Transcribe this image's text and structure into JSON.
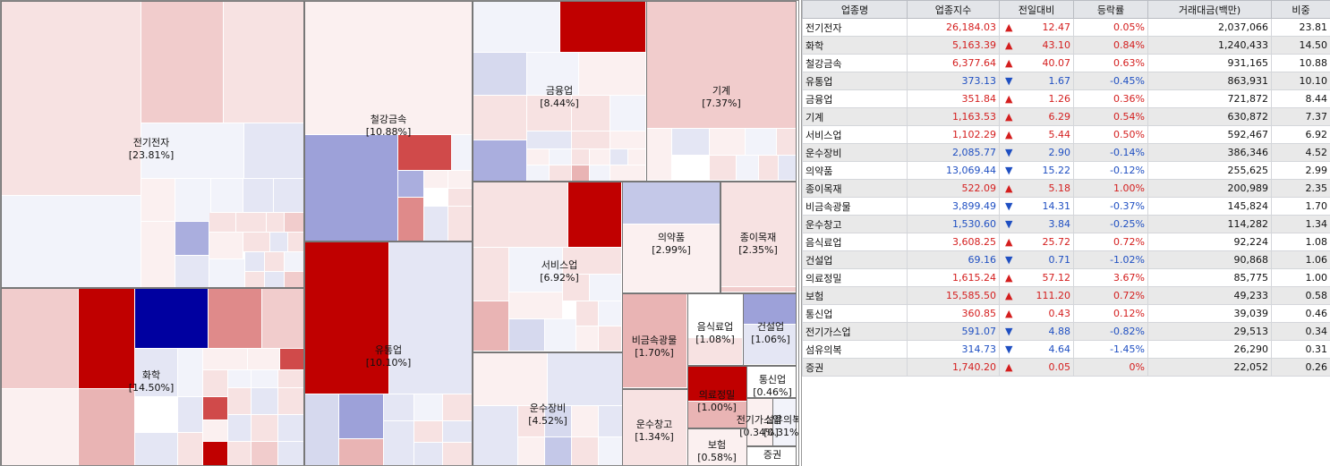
{
  "colors": {
    "up_strong": "#c00000",
    "down_strong": "#0000a0",
    "up_text": "#d41e1e",
    "down_text": "#1f4fc2",
    "header_bg": "#e3e5e9",
    "alt_row": "#e9e9e9"
  },
  "treemap": {
    "sectors": [
      {
        "name": "전기전자",
        "pct": "[23.81%]"
      },
      {
        "name": "화학",
        "pct": "[14.50%]"
      },
      {
        "name": "철강금속",
        "pct": "[10.88%]"
      },
      {
        "name": "유통업",
        "pct": "[10.10%]"
      },
      {
        "name": "금융업",
        "pct": "[8.44%]"
      },
      {
        "name": "기계",
        "pct": "[7.37%]"
      },
      {
        "name": "서비스업",
        "pct": "[6.92%]"
      },
      {
        "name": "운수장비",
        "pct": "[4.52%]"
      },
      {
        "name": "의약품",
        "pct": "[2.99%]"
      },
      {
        "name": "종이목재",
        "pct": "[2.35%]"
      },
      {
        "name": "비금속광물",
        "pct": "[1.70%]"
      },
      {
        "name": "음식료업",
        "pct": "[1.08%]"
      },
      {
        "name": "건설업",
        "pct": "[1.06%]"
      },
      {
        "name": "운수창고",
        "pct": "[1.34%]"
      },
      {
        "name": "의료정밀",
        "pct": "[1.00%]"
      },
      {
        "name": "통신업",
        "pct": "[0.46%]"
      },
      {
        "name": "전기가스업",
        "pct": "[0.34%]"
      },
      {
        "name": "섬유의복",
        "pct": "[0.31%]"
      },
      {
        "name": "보험",
        "pct": "[0.58%]"
      },
      {
        "name": "증권",
        "pct": ""
      }
    ]
  },
  "table": {
    "headers": [
      "업종명",
      "업종지수",
      "전일대비",
      "등락률",
      "거래대금(백만)",
      "비중"
    ],
    "rows": [
      {
        "name": "전기전자",
        "index": "26,184.03",
        "dir": "up",
        "change": "12.47",
        "rate": "0.05%",
        "amount": "2,037,066",
        "weight": "23.81"
      },
      {
        "name": "화학",
        "index": "5,163.39",
        "dir": "up",
        "change": "43.10",
        "rate": "0.84%",
        "amount": "1,240,433",
        "weight": "14.50"
      },
      {
        "name": "철강금속",
        "index": "6,377.64",
        "dir": "up",
        "change": "40.07",
        "rate": "0.63%",
        "amount": "931,165",
        "weight": "10.88"
      },
      {
        "name": "유통업",
        "index": "373.13",
        "dir": "down",
        "change": "1.67",
        "rate": "-0.45%",
        "amount": "863,931",
        "weight": "10.10"
      },
      {
        "name": "금융업",
        "index": "351.84",
        "dir": "up",
        "change": "1.26",
        "rate": "0.36%",
        "amount": "721,872",
        "weight": "8.44"
      },
      {
        "name": "기계",
        "index": "1,163.53",
        "dir": "up",
        "change": "6.29",
        "rate": "0.54%",
        "amount": "630,872",
        "weight": "7.37"
      },
      {
        "name": "서비스업",
        "index": "1,102.29",
        "dir": "up",
        "change": "5.44",
        "rate": "0.50%",
        "amount": "592,467",
        "weight": "6.92"
      },
      {
        "name": "운수장비",
        "index": "2,085.77",
        "dir": "down",
        "change": "2.90",
        "rate": "-0.14%",
        "amount": "386,346",
        "weight": "4.52"
      },
      {
        "name": "의약품",
        "index": "13,069.44",
        "dir": "down",
        "change": "15.22",
        "rate": "-0.12%",
        "amount": "255,625",
        "weight": "2.99"
      },
      {
        "name": "종이목재",
        "index": "522.09",
        "dir": "up",
        "change": "5.18",
        "rate": "1.00%",
        "amount": "200,989",
        "weight": "2.35"
      },
      {
        "name": "비금속광물",
        "index": "3,899.49",
        "dir": "down",
        "change": "14.31",
        "rate": "-0.37%",
        "amount": "145,824",
        "weight": "1.70"
      },
      {
        "name": "운수창고",
        "index": "1,530.60",
        "dir": "down",
        "change": "3.84",
        "rate": "-0.25%",
        "amount": "114,282",
        "weight": "1.34"
      },
      {
        "name": "음식료업",
        "index": "3,608.25",
        "dir": "up",
        "change": "25.72",
        "rate": "0.72%",
        "amount": "92,224",
        "weight": "1.08"
      },
      {
        "name": "건설업",
        "index": "69.16",
        "dir": "down",
        "change": "0.71",
        "rate": "-1.02%",
        "amount": "90,868",
        "weight": "1.06"
      },
      {
        "name": "의료정밀",
        "index": "1,615.24",
        "dir": "up",
        "change": "57.12",
        "rate": "3.67%",
        "amount": "85,775",
        "weight": "1.00"
      },
      {
        "name": "보험",
        "index": "15,585.50",
        "dir": "up",
        "change": "111.20",
        "rate": "0.72%",
        "amount": "49,233",
        "weight": "0.58"
      },
      {
        "name": "통신업",
        "index": "360.85",
        "dir": "up",
        "change": "0.43",
        "rate": "0.12%",
        "amount": "39,039",
        "weight": "0.46"
      },
      {
        "name": "전기가스업",
        "index": "591.07",
        "dir": "down",
        "change": "4.88",
        "rate": "-0.82%",
        "amount": "29,513",
        "weight": "0.34"
      },
      {
        "name": "섬유의복",
        "index": "314.73",
        "dir": "down",
        "change": "4.64",
        "rate": "-1.45%",
        "amount": "26,290",
        "weight": "0.31"
      },
      {
        "name": "증권",
        "index": "1,740.20",
        "dir": "up",
        "change": "0.05",
        "rate": "0%",
        "amount": "22,052",
        "weight": "0.26"
      }
    ]
  }
}
